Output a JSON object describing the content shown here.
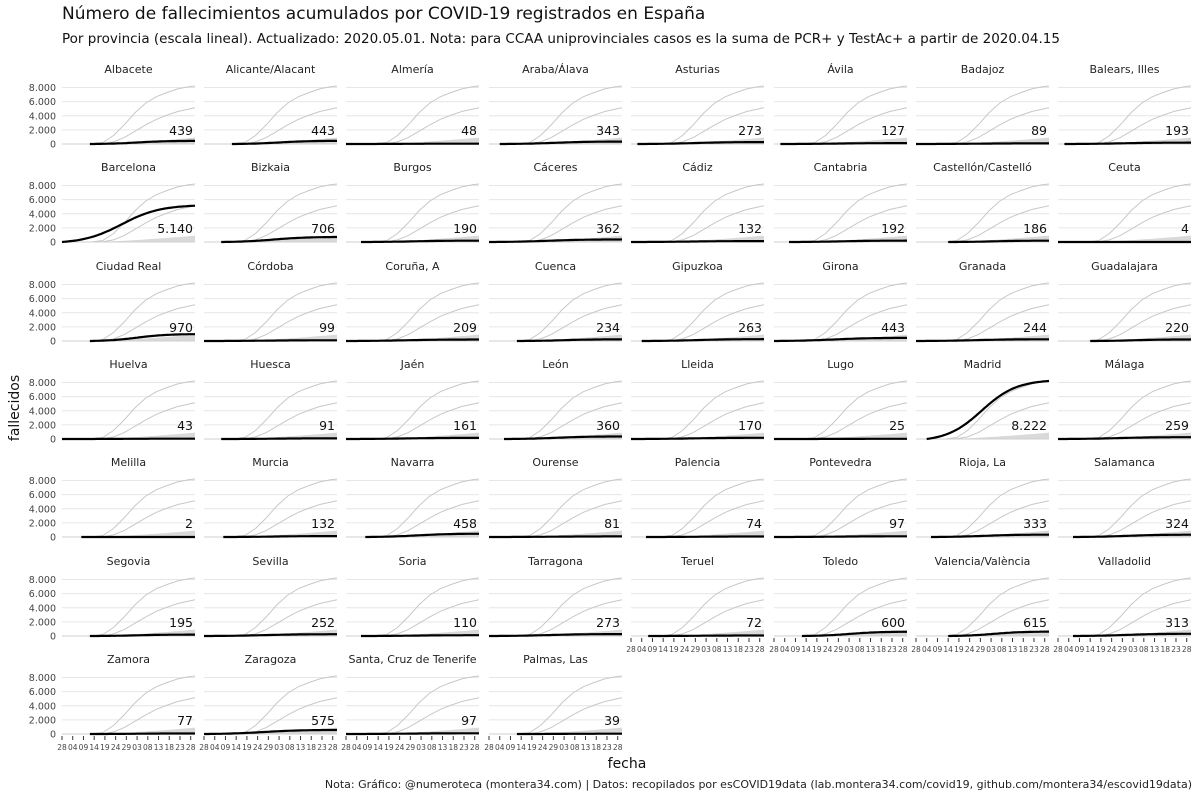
{
  "title": "Número de fallecimientos acumulados por COVID-19 registrados en España",
  "subtitle": "Por provincia (escala lineal). Actualizado: 2020.05.01. Nota: para CCAA uniprovinciales casos es la suma de PCR+ y TestAc+ a partir de 2020.04.15",
  "caption": "Nota: Gráfico: @numeroteca (montera34.com) | Datos: recopilados por esCOVID19data (lab.montera34.com/covid19, github.com/montera34/escovid19data)",
  "colors": {
    "highlight": "#000000",
    "background_lines": "#c8c8c8",
    "grid": "#e6e6e6"
  },
  "chart_data": {
    "type": "line",
    "facet": "small multiples by province (highlighted province in black, others in grey)",
    "xlabel": "fecha",
    "ylabel": "fallecidos",
    "ylim": [
      0,
      8500
    ],
    "y_ticks": [
      0,
      2000,
      4000,
      6000,
      8000
    ],
    "y_tick_labels": [
      "0",
      "2.000",
      "4.000",
      "6.000",
      "8.000"
    ],
    "x_range": [
      "2020-02-28",
      "2020-04-30"
    ],
    "x_tick_labels": [
      "28",
      "04",
      "09",
      "14",
      "19",
      "24",
      "29",
      "03",
      "08",
      "13",
      "18",
      "23",
      "28"
    ],
    "grid": true,
    "background_reference": {
      "dates": [
        "2020-03-13",
        "2020-03-18",
        "2020-03-23",
        "2020-03-28",
        "2020-04-02",
        "2020-04-07",
        "2020-04-12",
        "2020-04-17",
        "2020-04-22",
        "2020-04-27",
        "2020-04-30"
      ],
      "madrid": [
        20,
        210,
        1200,
        2700,
        4400,
        5800,
        6700,
        7300,
        7800,
        8100,
        8222
      ],
      "barcelona": [
        0,
        40,
        300,
        900,
        1800,
        2700,
        3500,
        4100,
        4600,
        4950,
        5140
      ]
    },
    "provinces": [
      {
        "name": "Albacete",
        "value": 439,
        "start": "2020-03-12"
      },
      {
        "name": "Alicante/Alacant",
        "value": 443,
        "start": "2020-03-12"
      },
      {
        "name": "Almería",
        "value": 48,
        "start": "2020-02-28"
      },
      {
        "name": "Araba/Álava",
        "value": 343,
        "start": "2020-03-04"
      },
      {
        "name": "Asturias",
        "value": 273,
        "start": "2020-03-02"
      },
      {
        "name": "Ávila",
        "value": 127,
        "start": "2020-03-02"
      },
      {
        "name": "Badajoz",
        "value": 89,
        "start": "2020-02-28"
      },
      {
        "name": "Balears, Illes",
        "value": 193,
        "start": "2020-03-02"
      },
      {
        "name": "Barcelona",
        "value": 5140,
        "start": "2020-02-28"
      },
      {
        "name": "Bizkaia",
        "value": 706,
        "start": "2020-03-07"
      },
      {
        "name": "Burgos",
        "value": 190,
        "start": "2020-03-06"
      },
      {
        "name": "Cáceres",
        "value": 362,
        "start": "2020-02-28"
      },
      {
        "name": "Cádiz",
        "value": 132,
        "start": "2020-02-28"
      },
      {
        "name": "Cantabria",
        "value": 192,
        "start": "2020-03-06"
      },
      {
        "name": "Castellón/Castelló",
        "value": 186,
        "start": "2020-03-14"
      },
      {
        "name": "Ceuta",
        "value": 4,
        "start": "2020-02-28"
      },
      {
        "name": "Ciudad Real",
        "value": 970,
        "start": "2020-03-12"
      },
      {
        "name": "Córdoba",
        "value": 99,
        "start": "2020-02-28"
      },
      {
        "name": "Coruña, A",
        "value": 209,
        "start": "2020-02-28"
      },
      {
        "name": "Cuenca",
        "value": 234,
        "start": "2020-03-12"
      },
      {
        "name": "Gipuzkoa",
        "value": 263,
        "start": "2020-03-04"
      },
      {
        "name": "Girona",
        "value": 443,
        "start": "2020-02-28"
      },
      {
        "name": "Granada",
        "value": 244,
        "start": "2020-02-28"
      },
      {
        "name": "Guadalajara",
        "value": 220,
        "start": "2020-03-14"
      },
      {
        "name": "Huelva",
        "value": 43,
        "start": "2020-02-28"
      },
      {
        "name": "Huesca",
        "value": 91,
        "start": "2020-03-07"
      },
      {
        "name": "Jaén",
        "value": 161,
        "start": "2020-02-28"
      },
      {
        "name": "León",
        "value": 360,
        "start": "2020-03-06"
      },
      {
        "name": "Lleida",
        "value": 170,
        "start": "2020-02-28"
      },
      {
        "name": "Lugo",
        "value": 25,
        "start": "2020-02-28"
      },
      {
        "name": "Madrid",
        "value": 8222,
        "start": "2020-03-04"
      },
      {
        "name": "Málaga",
        "value": 259,
        "start": "2020-02-28"
      },
      {
        "name": "Melilla",
        "value": 2,
        "start": "2020-03-08"
      },
      {
        "name": "Murcia",
        "value": 132,
        "start": "2020-03-08"
      },
      {
        "name": "Navarra",
        "value": 458,
        "start": "2020-03-08"
      },
      {
        "name": "Ourense",
        "value": 81,
        "start": "2020-02-28"
      },
      {
        "name": "Palencia",
        "value": 74,
        "start": "2020-03-06"
      },
      {
        "name": "Pontevedra",
        "value": 97,
        "start": "2020-02-28"
      },
      {
        "name": "Rioja, La",
        "value": 333,
        "start": "2020-03-06"
      },
      {
        "name": "Salamanca",
        "value": 324,
        "start": "2020-03-06"
      },
      {
        "name": "Segovia",
        "value": 195,
        "start": "2020-03-12"
      },
      {
        "name": "Sevilla",
        "value": 252,
        "start": "2020-02-28"
      },
      {
        "name": "Soria",
        "value": 110,
        "start": "2020-03-06"
      },
      {
        "name": "Tarragona",
        "value": 273,
        "start": "2020-02-28"
      },
      {
        "name": "Teruel",
        "value": 72,
        "start": "2020-03-07"
      },
      {
        "name": "Toledo",
        "value": 600,
        "start": "2020-03-12"
      },
      {
        "name": "Valencia/València",
        "value": 615,
        "start": "2020-03-14"
      },
      {
        "name": "Valladolid",
        "value": 313,
        "start": "2020-03-06"
      },
      {
        "name": "Zamora",
        "value": 77,
        "start": "2020-03-12"
      },
      {
        "name": "Zaragoza",
        "value": 575,
        "start": "2020-02-28"
      },
      {
        "name": "Santa, Cruz de Tenerife",
        "value": 97,
        "start": "2020-02-28"
      },
      {
        "name": "Palmas, Las",
        "value": 39,
        "start": "2020-03-12"
      }
    ]
  }
}
